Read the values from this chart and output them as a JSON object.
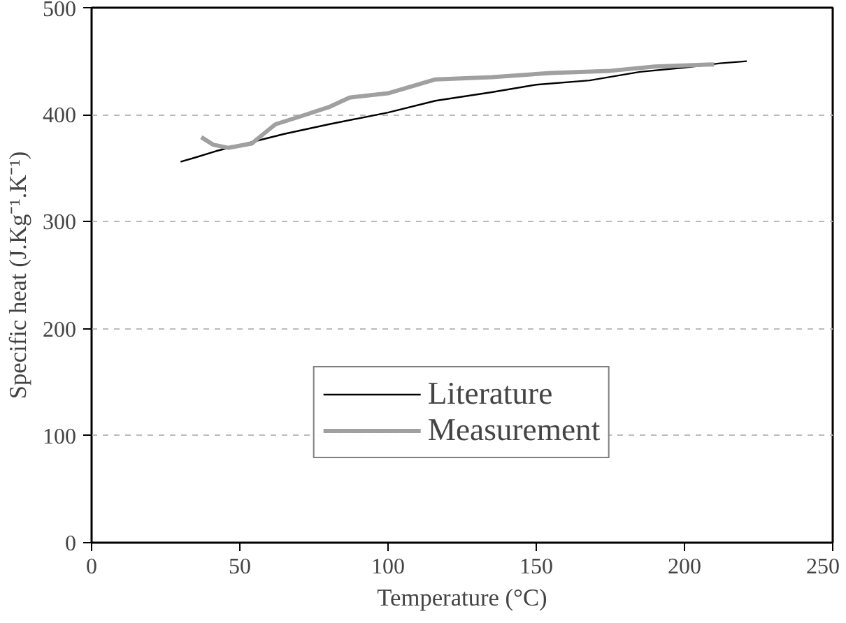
{
  "chart_data": {
    "type": "line",
    "xlabel": "Temperature (°C)",
    "ylabel": "Specific heat (J.Kg⁻¹.K⁻¹)",
    "xlim": [
      0,
      250
    ],
    "ylim": [
      0,
      500
    ],
    "xticks": [
      0,
      50,
      100,
      150,
      200,
      250
    ],
    "yticks": [
      0,
      100,
      200,
      300,
      400,
      500
    ],
    "grid": "y",
    "legend": "bottom",
    "line_style": "solid",
    "marker": "none",
    "series": [
      {
        "name": "Literature",
        "color": "#000000",
        "x": [
          30,
          35,
          42,
          65,
          80,
          100,
          116,
          135,
          150,
          168,
          185,
          200,
          212,
          221
        ],
        "values": [
          356,
          360,
          366,
          382,
          391,
          402,
          413,
          421,
          428,
          432,
          440,
          444,
          448,
          450
        ]
      },
      {
        "name": "Measurement",
        "color": "#a0a0a0",
        "x": [
          37,
          41,
          46,
          54,
          58,
          62,
          70,
          80,
          87,
          100,
          116,
          135,
          155,
          175,
          190,
          210
        ],
        "values": [
          379,
          372,
          369,
          373,
          382,
          391,
          398,
          407,
          416,
          420,
          433,
          435,
          439,
          441,
          445,
          447
        ]
      }
    ]
  }
}
